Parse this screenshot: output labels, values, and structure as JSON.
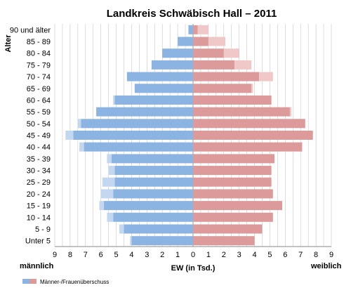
{
  "chart_data": {
    "type": "bar",
    "orientation": "horizontal-population-pyramid",
    "title": "Landkreis Schwäbisch Hall – 2011",
    "ylabel": "Alter",
    "xlabel": "EW (in Tsd.)",
    "left_side_label": "männlich",
    "right_side_label": "weiblich",
    "xlim": [
      -9,
      9
    ],
    "x_ticks": [
      "9",
      "8",
      "7",
      "6",
      "5",
      "4",
      "3",
      "2",
      "1",
      "0",
      "1",
      "2",
      "3",
      "4",
      "5",
      "6",
      "7",
      "8",
      "9"
    ],
    "grid": true,
    "legend": {
      "position": "bottom-left",
      "label": "Männer-/Frauenüberschuss"
    },
    "colors": {
      "male": "#8cb4e2",
      "male_surplus": "#c3d8f0",
      "female": "#dc9a9a",
      "female_surplus": "#f0c8c8",
      "grid": "#c8c8c8"
    },
    "categories": [
      "90 und älter",
      "85 - 89",
      "80 - 84",
      "75 - 79",
      "70 - 74",
      "65 - 69",
      "60 - 64",
      "55 - 59",
      "50 - 54",
      "45 - 49",
      "40 - 44",
      "35 - 39",
      "30 - 34",
      "25 - 29",
      "20 - 24",
      "15 - 19",
      "10 - 14",
      "5 - 9",
      "Unter 5"
    ],
    "series": [
      {
        "name": "männlich",
        "values": [
          0.3,
          1.0,
          2.0,
          2.7,
          4.3,
          3.8,
          5.2,
          6.3,
          7.5,
          8.3,
          7.4,
          5.6,
          5.5,
          5.9,
          6.0,
          6.1,
          5.6,
          4.8,
          4.1
        ]
      },
      {
        "name": "weiblich",
        "values": [
          1.0,
          2.1,
          3.0,
          3.8,
          5.2,
          3.9,
          5.1,
          6.4,
          7.3,
          7.8,
          7.1,
          5.3,
          5.1,
          5.1,
          5.2,
          5.8,
          5.2,
          4.5,
          4.0
        ]
      }
    ]
  }
}
